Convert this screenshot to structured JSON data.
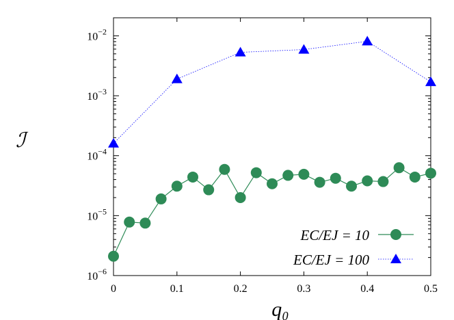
{
  "chart_data": {
    "type": "line",
    "x_label": "q₀",
    "y_label": "ℐ",
    "log_y": true,
    "xlim": [
      0,
      0.5
    ],
    "ylim": [
      1e-06,
      0.02
    ],
    "xticks": [
      0,
      0.1,
      0.2,
      0.3,
      0.4,
      0.5
    ],
    "yticks": [
      {
        "value": 1e-06,
        "label": "10",
        "exponent": "−6"
      },
      {
        "value": 1e-05,
        "label": "10",
        "exponent": "−5"
      },
      {
        "value": 0.0001,
        "label": "10",
        "exponent": "−4"
      },
      {
        "value": 0.001,
        "label": "10",
        "exponent": "−3"
      },
      {
        "value": 0.01,
        "label": "10",
        "exponent": "−2"
      }
    ],
    "legend_position": "lower right",
    "series": [
      {
        "name": "EC/EJ = 10",
        "color": "#2e8b57",
        "marker": "circle",
        "line": "solid",
        "x": [
          0,
          0.025,
          0.05,
          0.075,
          0.1,
          0.125,
          0.15,
          0.175,
          0.2,
          0.225,
          0.25,
          0.275,
          0.3,
          0.325,
          0.35,
          0.375,
          0.4,
          0.425,
          0.45,
          0.475,
          0.5
        ],
        "values": [
          2.1e-06,
          7.8e-06,
          7.5e-06,
          1.9e-05,
          3.1e-05,
          4.4e-05,
          2.7e-05,
          5.9e-05,
          2e-05,
          5.2e-05,
          3.4e-05,
          4.7e-05,
          4.9e-05,
          3.6e-05,
          4.2e-05,
          3.1e-05,
          3.8e-05,
          3.7e-05,
          6.3e-05,
          4.4e-05,
          5.1e-05
        ]
      },
      {
        "name": "EC/EJ = 100",
        "color": "#0000ff",
        "marker": "triangle",
        "line": "dotted",
        "x": [
          0,
          0.1,
          0.2,
          0.3,
          0.4,
          0.5
        ],
        "values": [
          0.00016,
          0.0019,
          0.0053,
          0.0059,
          0.0081,
          0.0017
        ]
      }
    ]
  }
}
